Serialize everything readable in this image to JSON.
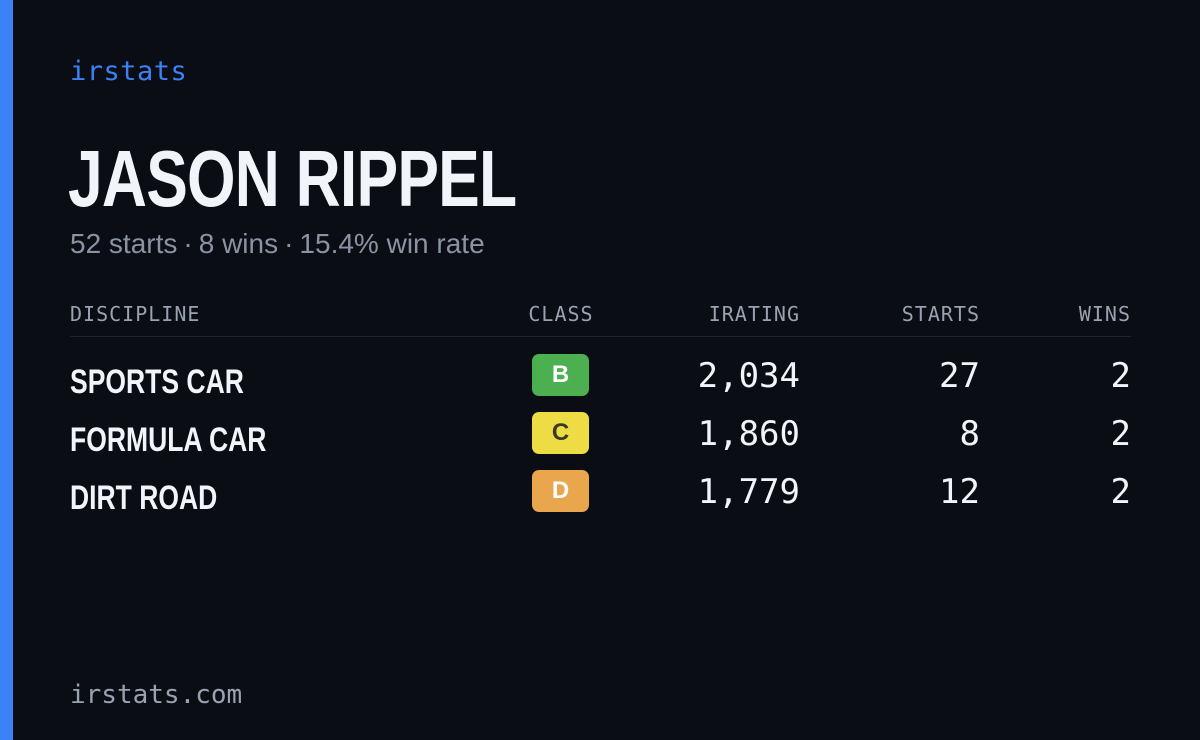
{
  "brand": "irstats",
  "player": {
    "name": "JASON RIPPEL",
    "starts_summary": "52 starts",
    "wins_summary": "8 wins",
    "win_rate_summary": "15.4% win rate",
    "separator": "·"
  },
  "table": {
    "headers": {
      "discipline": "DISCIPLINE",
      "class": "CLASS",
      "irating": "IRATING",
      "starts": "STARTS",
      "wins": "WINS"
    },
    "rows": [
      {
        "discipline": "SPORTS CAR",
        "class": "B",
        "class_color": "#4caf50",
        "class_text_color": "#ffffff",
        "irating": "2,034",
        "starts": "27",
        "wins": "2"
      },
      {
        "discipline": "FORMULA CAR",
        "class": "C",
        "class_color": "#eddc44",
        "class_text_color": "#3a3a2a",
        "irating": "1,860",
        "starts": "8",
        "wins": "2"
      },
      {
        "discipline": "DIRT ROAD",
        "class": "D",
        "class_color": "#e9a64c",
        "class_text_color": "#ffffff",
        "irating": "1,779",
        "starts": "12",
        "wins": "2"
      }
    ]
  },
  "footer": {
    "url": "irstats.com"
  },
  "colors": {
    "accent": "#3b82f6",
    "background": "#0a0d14"
  }
}
